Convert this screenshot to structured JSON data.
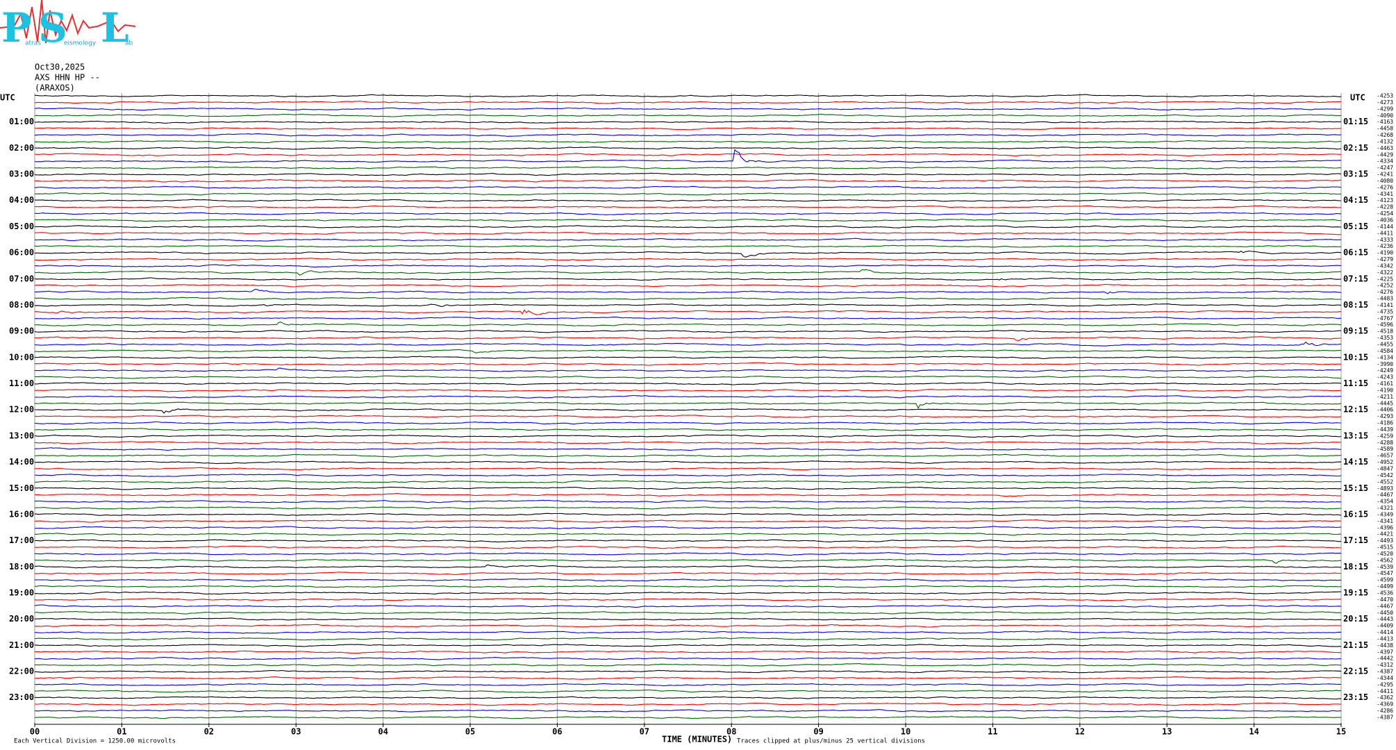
{
  "logo": {
    "letters": [
      "P",
      "S",
      "L"
    ],
    "words": [
      "atras",
      "eismology",
      "ab"
    ]
  },
  "header": {
    "date": "Oct30,2025",
    "channel": "AXS HHN HP --",
    "station": "(ARAXOS)"
  },
  "left_axis": {
    "title": "UTC",
    "labels": [
      "01:00",
      "02:00",
      "03:00",
      "04:00",
      "05:00",
      "06:00",
      "07:00",
      "08:00",
      "09:00",
      "10:00",
      "11:00",
      "12:00",
      "13:00",
      "14:00",
      "15:00",
      "16:00",
      "17:00",
      "18:00",
      "19:00",
      "20:00",
      "21:00",
      "22:00",
      "23:00"
    ]
  },
  "right_axis": {
    "title": "UTC",
    "labels": [
      "01:15",
      "02:15",
      "03:15",
      "04:15",
      "05:15",
      "06:15",
      "07:15",
      "08:15",
      "09:15",
      "10:15",
      "11:15",
      "12:15",
      "13:15",
      "14:15",
      "15:15",
      "16:15",
      "17:15",
      "18:15",
      "19:15",
      "20:15",
      "21:15",
      "22:15",
      "23:15"
    ]
  },
  "trace_offsets": [
    -4253,
    -4273,
    -4299,
    -4090,
    -4163,
    -4458,
    -4268,
    -4132,
    -4463,
    -4429,
    -4334,
    -4247,
    -4241,
    -4080,
    -4276,
    -4341,
    -4123,
    -4228,
    -4254,
    -4036,
    -4144,
    -4411,
    -4333,
    -4236,
    -4190,
    -4279,
    -4342,
    -4322,
    -4225,
    -4252,
    -4276,
    -4483,
    -4141,
    -4735,
    -4767,
    -4596,
    -4518,
    -4353,
    -4455,
    -4584,
    -4134,
    -3990,
    -4249,
    -4243,
    -4161,
    -4190,
    -4211,
    -4445,
    -4406,
    -4293,
    -4186,
    -4439,
    -4259,
    -4288,
    -4589,
    -4657,
    -4952,
    -4847,
    -4542,
    -4552,
    -4893,
    -4467,
    -4354,
    -4321,
    -4349,
    -4341,
    -4396,
    -4421,
    -4493,
    -4515,
    -4520,
    -4562,
    -4539,
    -4547,
    -4599,
    -4499,
    -4536,
    -4470,
    -4467,
    -4450,
    -4443,
    -4409,
    -4414,
    -4413,
    -4438,
    -4397,
    -4442,
    -4312,
    -4387,
    -4344,
    -4295,
    -4411,
    -4362,
    -4369,
    -4286,
    -4387
  ],
  "trace_colors": [
    "#000000",
    "#ff0000",
    "#0000ff",
    "#006400"
  ],
  "x_axis": {
    "label": "TIME (MINUTES)",
    "xlim": [
      0,
      15
    ],
    "xticks": [
      {
        "value": 0,
        "label": "00"
      },
      {
        "value": 1,
        "label": "01"
      },
      {
        "value": 2,
        "label": "02"
      },
      {
        "value": 3,
        "label": "03"
      },
      {
        "value": 4,
        "label": "04"
      },
      {
        "value": 5,
        "label": "05"
      },
      {
        "value": 6,
        "label": "06"
      },
      {
        "value": 7,
        "label": "07"
      },
      {
        "value": 8,
        "label": "08"
      },
      {
        "value": 9,
        "label": "09"
      },
      10,
      11,
      12,
      13,
      14,
      15
    ]
  },
  "footer": {
    "scale_note": "Each Vertical Division = 1250.00 microvolts",
    "clip_note": "Traces clipped at plus/minus 25 vertical divisions"
  }
}
